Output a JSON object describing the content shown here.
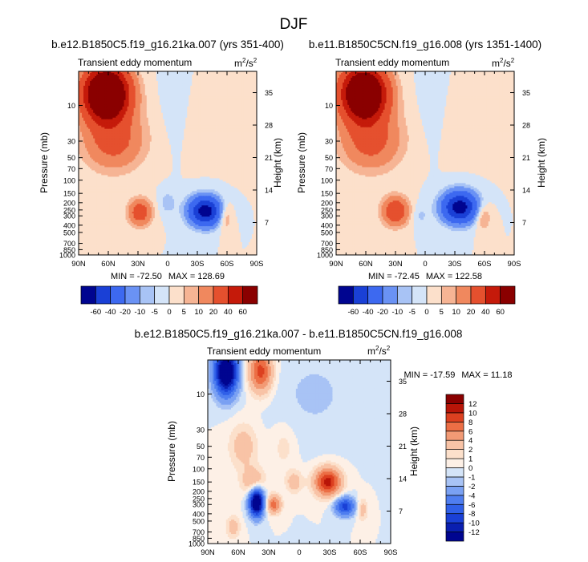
{
  "chart_data": {
    "type": "heatmap",
    "title": "DJF",
    "panels": [
      {
        "id": "p1",
        "title": "b.e12.B1850C5.f19_g16.21ka.007 (yrs 351-400)",
        "subtitle_left": "Transient eddy momentum",
        "units_base": "m",
        "units_sup1": "2",
        "units_mid": "/s",
        "units_sup2": "2",
        "ylabel": "Pressure (mb)",
        "y2label": "Height (km)",
        "min_text": "MIN = -72.50",
        "max_text": "MAX = 128.69",
        "x_range": [
          90,
          -90
        ],
        "blobs": [
          {
            "lat": 62,
            "p": 7,
            "w": 15,
            "h": 0.55,
            "a": 130
          },
          {
            "lat": 55,
            "p": 30,
            "w": 20,
            "h": 0.6,
            "a": 25
          },
          {
            "lat": 28,
            "p": 270,
            "w": 8,
            "h": 0.28,
            "a": 30
          },
          {
            "lat": 5,
            "p": 15,
            "w": 80,
            "h": 0.9,
            "a": 1.5
          },
          {
            "lat": -5,
            "p": 10,
            "w": 12,
            "h": 1.0,
            "a": -3
          },
          {
            "lat": 0,
            "p": 200,
            "w": 6,
            "h": 0.25,
            "a": -8
          },
          {
            "lat": -38,
            "p": 260,
            "w": 11,
            "h": 0.3,
            "a": -72
          },
          {
            "lat": -58,
            "p": 300,
            "w": 5,
            "h": 0.3,
            "a": 15
          }
        ]
      },
      {
        "id": "p2",
        "title": "b.e11.B1850C5CN.f19_g16.008 (yrs 1351-1400)",
        "subtitle_left": "Transient eddy momentum",
        "units_base": "m",
        "units_sup1": "2",
        "units_mid": "/s",
        "units_sup2": "2",
        "ylabel": "Pressure (mb)",
        "y2label": "Height (km)",
        "min_text": "MIN = -72.45",
        "max_text": "MAX = 122.58",
        "x_range": [
          90,
          -90
        ],
        "blobs": [
          {
            "lat": 62,
            "p": 7,
            "w": 15,
            "h": 0.55,
            "a": 122
          },
          {
            "lat": 55,
            "p": 30,
            "w": 20,
            "h": 0.6,
            "a": 25
          },
          {
            "lat": 30,
            "p": 260,
            "w": 9,
            "h": 0.3,
            "a": 35
          },
          {
            "lat": 5,
            "p": 15,
            "w": 80,
            "h": 0.9,
            "a": 1.5
          },
          {
            "lat": -5,
            "p": 10,
            "w": 12,
            "h": 1.0,
            "a": -3
          },
          {
            "lat": 5,
            "p": 300,
            "w": 6,
            "h": 0.25,
            "a": -6
          },
          {
            "lat": -35,
            "p": 230,
            "w": 12,
            "h": 0.32,
            "a": -72
          },
          {
            "lat": -58,
            "p": 300,
            "w": 6,
            "h": 0.3,
            "a": 14
          }
        ]
      },
      {
        "id": "p3",
        "title": "b.e12.B1850C5.f19_g16.21ka.007 - b.e11.B1850C5CN.f19_g16.008",
        "subtitle_left": "Transient eddy momentum",
        "units_base": "m",
        "units_sup1": "2",
        "units_mid": "/s",
        "units_sup2": "2",
        "ylabel": "Pressure (mb)",
        "y2label": "Height (km)",
        "min_text": "MIN = -17.59",
        "max_text": "MAX =  11.18",
        "x_range": [
          90,
          -90
        ],
        "blobs": [
          {
            "lat": 72,
            "p": 5,
            "w": 8,
            "h": 0.5,
            "a": -17
          },
          {
            "lat": 38,
            "p": 5,
            "w": 8,
            "h": 0.45,
            "a": 9
          },
          {
            "lat": 55,
            "p": 50,
            "w": 10,
            "h": 0.5,
            "a": 3
          },
          {
            "lat": 15,
            "p": 50,
            "w": 8,
            "h": 0.5,
            "a": 1.5
          },
          {
            "lat": 42,
            "p": 280,
            "w": 5,
            "h": 0.3,
            "a": -17
          },
          {
            "lat": 25,
            "p": 300,
            "w": 5,
            "h": 0.2,
            "a": 7
          },
          {
            "lat": 45,
            "p": 150,
            "w": 8,
            "h": 0.3,
            "a": 4
          },
          {
            "lat": 5,
            "p": 150,
            "w": 6,
            "h": 0.25,
            "a": 3
          },
          {
            "lat": -28,
            "p": 150,
            "w": 9,
            "h": 0.3,
            "a": 11
          },
          {
            "lat": -45,
            "p": 320,
            "w": 7,
            "h": 0.2,
            "a": -9
          },
          {
            "lat": -62,
            "p": 350,
            "w": 4,
            "h": 0.25,
            "a": 3
          },
          {
            "lat": -15,
            "p": 10,
            "w": 30,
            "h": 1.0,
            "a": -1.2
          },
          {
            "lat": 65,
            "p": 600,
            "w": 5,
            "h": 0.25,
            "a": 3
          }
        ]
      }
    ],
    "x_ticks": [
      {
        "v": 90,
        "label": "90N"
      },
      {
        "v": 60,
        "label": "60N"
      },
      {
        "v": 30,
        "label": "30N"
      },
      {
        "v": 0,
        "label": "0"
      },
      {
        "v": -30,
        "label": "30S"
      },
      {
        "v": -60,
        "label": "60S"
      },
      {
        "v": -90,
        "label": "90S"
      }
    ],
    "p_ticks": [
      {
        "v": 10,
        "label": "10"
      },
      {
        "v": 30,
        "label": "30"
      },
      {
        "v": 50,
        "label": "50"
      },
      {
        "v": 70,
        "label": "70"
      },
      {
        "v": 100,
        "label": "100"
      },
      {
        "v": 150,
        "label": "150"
      },
      {
        "v": 200,
        "label": "200"
      },
      {
        "v": 250,
        "label": "250"
      },
      {
        "v": 300,
        "label": "300"
      },
      {
        "v": 400,
        "label": "400"
      },
      {
        "v": 500,
        "label": "500"
      },
      {
        "v": 700,
        "label": "700"
      },
      {
        "v": 850,
        "label": "850"
      },
      {
        "v": 1000,
        "label": "1000"
      }
    ],
    "height_ticks": [
      {
        "km": 35,
        "label": "35"
      },
      {
        "km": 28,
        "label": "28"
      },
      {
        "km": 21,
        "label": "21"
      },
      {
        "km": 14,
        "label": "14"
      },
      {
        "km": 7,
        "label": "7"
      }
    ],
    "p_range": [
      3.5,
      1000
    ],
    "shared_colorbar": {
      "levels": [
        -60,
        -40,
        -20,
        -10,
        -5,
        0,
        5,
        10,
        20,
        40,
        60
      ],
      "labels": [
        "-60",
        "-40",
        "-20",
        "-10",
        "-5",
        "0",
        "5",
        "10",
        "20",
        "40",
        "60"
      ],
      "colors": [
        "#000590",
        "#1a40d6",
        "#3d69f0",
        "#6a92f4",
        "#a8c3f5",
        "#d4e4f8",
        "#fce0cb",
        "#f6b494",
        "#f0885e",
        "#e5502e",
        "#c51a0a",
        "#8a0000"
      ]
    },
    "diff_colorbar": {
      "levels": [
        -12,
        -10,
        -8,
        -6,
        -4,
        -2,
        -1,
        0,
        1,
        2,
        4,
        6,
        8,
        10,
        12
      ],
      "labels": [
        "-12",
        "-10",
        "-8",
        "-6",
        "-4",
        "-2",
        "-1",
        "0",
        "1",
        "2",
        "4",
        "6",
        "8",
        "10",
        "12"
      ],
      "colors": [
        "#000590",
        "#0a1fb0",
        "#1a40d6",
        "#3060e8",
        "#4f7ef0",
        "#7aa1f3",
        "#a8c3f5",
        "#d4e4f8",
        "#fdf0e6",
        "#fce0cb",
        "#f8c3a6",
        "#f29a75",
        "#ec6e45",
        "#dc4020",
        "#b81508",
        "#8a0000"
      ]
    }
  }
}
